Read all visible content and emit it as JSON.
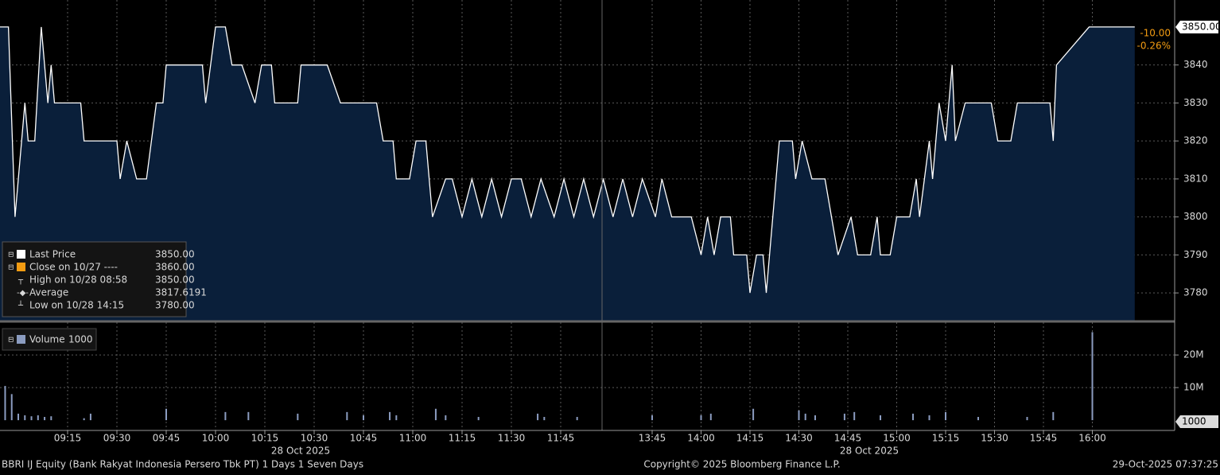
{
  "chart_data": [
    {
      "type": "line",
      "series": [
        {
          "name": "Last Price",
          "color": "#ffffff",
          "fill": "#0a1f3a",
          "x": [
            "08:54",
            "08:57",
            "08:59",
            "09:02",
            "09:03",
            "09:05",
            "09:07",
            "09:09",
            "09:10",
            "09:11",
            "09:19",
            "09:20",
            "09:30",
            "09:31",
            "09:33",
            "09:36",
            "09:39",
            "09:42",
            "09:44",
            "09:45",
            "09:56",
            "09:57",
            "10:00",
            "10:03",
            "10:05",
            "10:08",
            "10:12",
            "10:14",
            "10:17",
            "10:18",
            "10:25",
            "10:26",
            "10:34",
            "10:38",
            "10:49",
            "10:51",
            "10:54",
            "10:55",
            "10:59",
            "11:01",
            "11:04",
            "11:06",
            "11:10",
            "11:12",
            "11:15",
            "11:18",
            "11:21",
            "11:24",
            "11:27",
            "11:30",
            "11:33",
            "11:36",
            "11:39",
            "11:43",
            "11:46",
            "11:49",
            "11:52",
            "11:55",
            "11:58",
            "13:30",
            "13:33",
            "13:36",
            "13:39",
            "13:42",
            "13:46",
            "13:48",
            "13:51",
            "13:57",
            "14:00",
            "14:02",
            "14:04",
            "14:06",
            "14:09",
            "14:10",
            "14:14",
            "14:15",
            "14:17",
            "14:19",
            "14:20",
            "14:24",
            "14:28",
            "14:29",
            "14:31",
            "14:34",
            "14:38",
            "14:40",
            "14:42",
            "14:46",
            "14:48",
            "14:52",
            "14:54",
            "14:55",
            "14:58",
            "15:00",
            "15:04",
            "15:06",
            "15:07",
            "15:10",
            "15:11",
            "15:13",
            "15:15",
            "15:17",
            "15:18",
            "15:21",
            "15:29",
            "15:31",
            "15:35",
            "15:37",
            "15:47",
            "15:48",
            "15:49",
            "15:59",
            "16:13"
          ],
          "values": [
            3850,
            3850,
            3800,
            3830,
            3820,
            3820,
            3850,
            3830,
            3840,
            3830,
            3830,
            3820,
            3820,
            3810,
            3820,
            3810,
            3810,
            3830,
            3830,
            3840,
            3840,
            3830,
            3850,
            3850,
            3840,
            3840,
            3830,
            3840,
            3840,
            3830,
            3830,
            3840,
            3840,
            3830,
            3830,
            3820,
            3820,
            3810,
            3810,
            3820,
            3820,
            3800,
            3810,
            3810,
            3800,
            3810,
            3800,
            3810,
            3800,
            3810,
            3810,
            3800,
            3810,
            3800,
            3810,
            3800,
            3810,
            3800,
            3810,
            3810,
            3800,
            3810,
            3800,
            3810,
            3800,
            3810,
            3800,
            3800,
            3790,
            3800,
            3790,
            3800,
            3800,
            3790,
            3790,
            3780,
            3790,
            3790,
            3780,
            3820,
            3820,
            3810,
            3820,
            3810,
            3810,
            3800,
            3790,
            3800,
            3790,
            3790,
            3800,
            3790,
            3790,
            3800,
            3800,
            3810,
            3800,
            3820,
            3810,
            3830,
            3820,
            3840,
            3820,
            3830,
            3830,
            3820,
            3820,
            3830,
            3830,
            3820,
            3840,
            3850,
            3850
          ]
        }
      ],
      "ylim": [
        3772.7,
        3857.1
      ],
      "yticks": [
        3780,
        3790,
        3800,
        3810,
        3820,
        3830,
        3840
      ],
      "xticks": [
        "09:15",
        "09:30",
        "09:45",
        "10:00",
        "10:15",
        "10:30",
        "10:45",
        "11:00",
        "11:15",
        "11:30",
        "11:45",
        "13:45",
        "14:00",
        "14:15",
        "14:30",
        "14:45",
        "15:00",
        "15:15",
        "15:30",
        "15:45",
        "16:00"
      ],
      "x_date_labels": [
        "28 Oct 2025",
        "28 Oct 2025"
      ],
      "grid": true,
      "last_price_label": "3850.00",
      "change": "-10.00",
      "change_pct": "-0.26%",
      "legend_items": [
        {
          "label": "Last Price",
          "value": "3850.00"
        },
        {
          "label": "Close on 10/27 ----",
          "value": "3860.00"
        },
        {
          "label": "High on 10/28 08:58",
          "value": "3850.00"
        },
        {
          "label": "Average",
          "value": "3817.6191"
        },
        {
          "label": "Low on 10/28 14:15",
          "value": "3780.00"
        }
      ]
    },
    {
      "type": "bar",
      "series": [
        {
          "name": "Volume",
          "color": "#8b9cc0",
          "x": [
            "08:56",
            "08:58",
            "09:00",
            "09:02",
            "09:04",
            "09:06",
            "09:08",
            "09:10",
            "09:20",
            "09:22",
            "09:45",
            "10:03",
            "10:10",
            "10:25",
            "10:40",
            "10:45",
            "10:53",
            "10:55",
            "11:07",
            "11:10",
            "11:20",
            "11:38",
            "11:40",
            "11:50",
            "13:45",
            "14:00",
            "14:03",
            "14:16",
            "14:30",
            "14:32",
            "14:35",
            "14:44",
            "14:47",
            "14:55",
            "15:05",
            "15:10",
            "15:15",
            "15:25",
            "15:40",
            "15:48",
            "16:00"
          ],
          "values": [
            10500000,
            8000000,
            2000000,
            1500000,
            1200000,
            1500000,
            1000000,
            1200000,
            600000,
            2000000,
            3500000,
            2500000,
            2500000,
            2000000,
            2500000,
            1500000,
            2500000,
            1500000,
            3500000,
            1500000,
            1000000,
            2000000,
            1000000,
            1000000,
            1500000,
            1500000,
            2000000,
            3500000,
            3000000,
            2000000,
            1500000,
            2000000,
            2500000,
            1500000,
            2000000,
            1500000,
            2500000,
            1000000,
            1000000,
            2500000,
            27000000
          ]
        }
      ],
      "legend_value": 1000,
      "last_label": 1000,
      "ylim": [
        -2900000,
        29300000
      ],
      "yticks": [
        {
          "value": 10000000,
          "label": "10M"
        },
        {
          "value": 20000000,
          "label": "20M"
        }
      ],
      "grid": true
    }
  ],
  "footer": {
    "left": "BBRI IJ Equity (Bank Rakyat Indonesia Persero Tbk PT) 1 Days 1 Seven Days",
    "center": "Copyright© 2025 Bloomberg Finance L.P.",
    "right": "29-Oct-2025 07:37:25"
  }
}
